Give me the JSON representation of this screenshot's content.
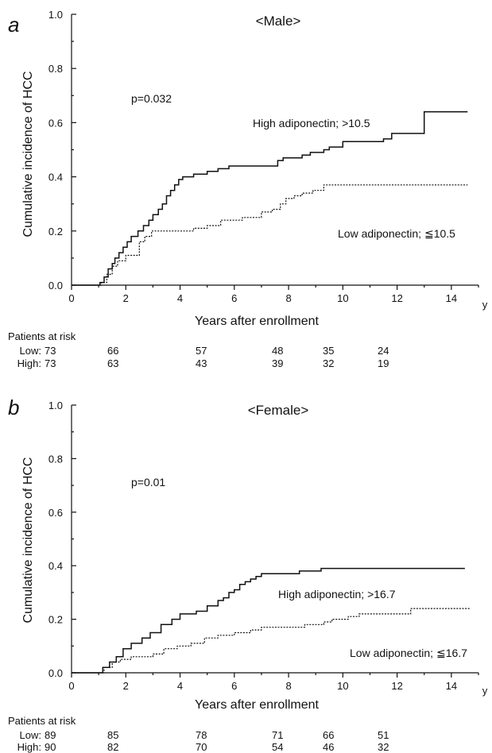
{
  "chart_data": [
    {
      "panel": "a",
      "type": "line",
      "title": "<Male>",
      "xlabel": "Years after enrollment",
      "x_unit": "y",
      "ylabel": "Cumulative incidence of HCC",
      "xlim": [
        0,
        15
      ],
      "ylim": [
        0,
        1.0
      ],
      "xticks": [
        "0",
        "2",
        "4",
        "6",
        "8",
        "10",
        "12",
        "14"
      ],
      "yticks": [
        "0.0",
        "0.2",
        "0.4",
        "0.6",
        "0.8",
        "1.0"
      ],
      "p_value": "p=0.032",
      "series": [
        {
          "name": "High adiponectin; >10.5",
          "style": "solid",
          "x": [
            0,
            1.05,
            1.2,
            1.35,
            1.5,
            1.6,
            1.75,
            1.9,
            2.05,
            2.2,
            2.45,
            2.65,
            2.85,
            3.0,
            3.2,
            3.35,
            3.5,
            3.65,
            3.8,
            3.95,
            4.1,
            4.5,
            5.0,
            5.4,
            5.8,
            6.3,
            7.6,
            7.8,
            8.5,
            8.8,
            9.3,
            9.5,
            10.0,
            11.5,
            11.8,
            13.0,
            14.6
          ],
          "y": [
            0,
            0.01,
            0.03,
            0.06,
            0.08,
            0.1,
            0.12,
            0.14,
            0.16,
            0.18,
            0.2,
            0.22,
            0.24,
            0.26,
            0.28,
            0.3,
            0.33,
            0.35,
            0.37,
            0.39,
            0.4,
            0.41,
            0.42,
            0.43,
            0.44,
            0.44,
            0.46,
            0.47,
            0.48,
            0.49,
            0.5,
            0.51,
            0.53,
            0.54,
            0.56,
            0.64,
            0.64
          ]
        },
        {
          "name": "Low adiponectin; ≦10.5",
          "style": "dotted",
          "x": [
            0,
            1.1,
            1.3,
            1.5,
            1.7,
            2.0,
            2.5,
            2.7,
            2.95,
            3.2,
            4.0,
            4.5,
            5.0,
            5.5,
            6.3,
            7.0,
            7.4,
            7.7,
            7.9,
            8.2,
            8.5,
            8.9,
            9.3,
            10.0,
            14.6
          ],
          "y": [
            0,
            0.01,
            0.04,
            0.07,
            0.09,
            0.11,
            0.16,
            0.18,
            0.2,
            0.2,
            0.2,
            0.21,
            0.22,
            0.24,
            0.25,
            0.27,
            0.28,
            0.3,
            0.32,
            0.33,
            0.34,
            0.35,
            0.37,
            0.37,
            0.37
          ]
        }
      ],
      "risk_table": {
        "title": "Patients at risk",
        "rows": [
          {
            "label": "Low:",
            "values": [
              "73",
              "66",
              "57",
              "48",
              "35",
              "24"
            ]
          },
          {
            "label": "High:",
            "values": [
              "73",
              "63",
              "43",
              "39",
              "32",
              "19"
            ]
          }
        ]
      }
    },
    {
      "panel": "b",
      "type": "line",
      "title": "<Female>",
      "xlabel": "Years after enrollment",
      "x_unit": "y",
      "ylabel": "Cumulative incidence of HCC",
      "xlim": [
        0,
        15
      ],
      "ylim": [
        0,
        1.0
      ],
      "xticks": [
        "0",
        "2",
        "4",
        "6",
        "8",
        "10",
        "12",
        "14"
      ],
      "yticks": [
        "0.0",
        "0.2",
        "0.4",
        "0.6",
        "0.8",
        "1.0"
      ],
      "p_value": "p=0.01",
      "series": [
        {
          "name": "High adiponectin; >16.7",
          "style": "solid",
          "x": [
            0,
            1.15,
            1.4,
            1.65,
            1.9,
            2.2,
            2.6,
            2.9,
            3.3,
            3.7,
            4.0,
            4.6,
            5.0,
            5.4,
            5.6,
            5.8,
            6.0,
            6.2,
            6.4,
            6.6,
            6.8,
            7.0,
            7.5,
            8.4,
            8.8,
            9.2,
            14.5
          ],
          "y": [
            0,
            0.02,
            0.04,
            0.06,
            0.09,
            0.11,
            0.13,
            0.15,
            0.18,
            0.2,
            0.22,
            0.23,
            0.25,
            0.27,
            0.28,
            0.3,
            0.31,
            0.33,
            0.34,
            0.35,
            0.36,
            0.37,
            0.37,
            0.38,
            0.38,
            0.39,
            0.39
          ]
        },
        {
          "name": "Low adiponectin; ≦16.7",
          "style": "dotted",
          "x": [
            0,
            1.2,
            1.5,
            1.8,
            2.2,
            3.0,
            3.4,
            3.9,
            4.4,
            4.9,
            5.4,
            6.0,
            6.6,
            7.0,
            8.6,
            9.3,
            9.6,
            10.2,
            10.6,
            12.5,
            14.7
          ],
          "y": [
            0,
            0.02,
            0.04,
            0.05,
            0.06,
            0.07,
            0.09,
            0.1,
            0.11,
            0.13,
            0.14,
            0.15,
            0.16,
            0.17,
            0.18,
            0.19,
            0.2,
            0.21,
            0.22,
            0.24,
            0.24
          ]
        }
      ],
      "risk_table": {
        "title": "Patients at risk",
        "rows": [
          {
            "label": "Low:",
            "values": [
              "89",
              "85",
              "78",
              "71",
              "66",
              "51"
            ]
          },
          {
            "label": "High:",
            "values": [
              "90",
              "82",
              "70",
              "54",
              "46",
              "32"
            ]
          }
        ]
      }
    }
  ]
}
